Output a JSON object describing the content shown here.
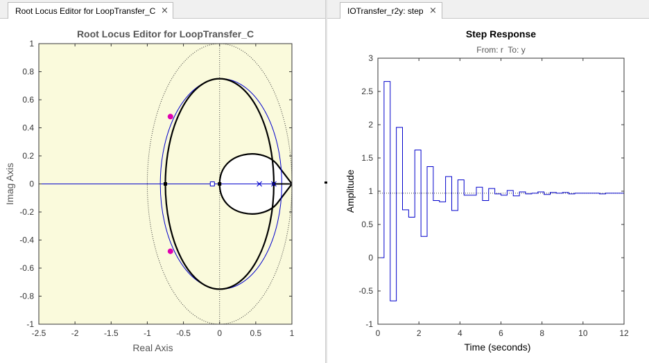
{
  "tabs": {
    "left": {
      "label": "Root Locus Editor for LoopTransfer_C",
      "close_glyph": "×"
    },
    "right": {
      "label": "IOTransfer_r2y: step",
      "close_glyph": "×"
    }
  },
  "chart_data": [
    {
      "type": "root-locus",
      "title": "Root Locus Editor for LoopTransfer_C",
      "xlabel": "Real Axis",
      "ylabel": "Imag Axis",
      "xlim": [
        -2.5,
        1
      ],
      "ylim": [
        -1,
        1
      ],
      "xticks": [
        -2.5,
        -2,
        -1.5,
        -1,
        -0.5,
        0,
        0.5,
        1
      ],
      "yticks": [
        -1,
        -0.8,
        -0.6,
        -0.4,
        -0.2,
        0,
        0.2,
        0.4,
        0.6,
        0.8,
        1
      ],
      "background_color": "#fafadc",
      "unit_circle": {
        "center": [
          0,
          0
        ],
        "radius": 1,
        "style": "dotted"
      },
      "open_loop_poles": [
        [
          0.55,
          0
        ],
        [
          0.75,
          0
        ]
      ],
      "open_loop_zeros": [
        [
          -0.1,
          0
        ]
      ],
      "closed_loop_poles": [
        [
          -0.68,
          0.48
        ],
        [
          -0.68,
          -0.48
        ]
      ],
      "branch_ellipse": {
        "center": [
          0,
          0
        ],
        "radius_x": 0.75,
        "radius_y": 0.75
      },
      "real_axis_branch": [
        [
          -2.5,
          0
        ],
        [
          0.75,
          0
        ]
      ],
      "loop_branch": {
        "left": 0,
        "right": 1,
        "top": 0.22,
        "bottom": -0.22
      },
      "compensator_locus": {
        "center": [
          0.02,
          0
        ],
        "radius_x": 0.84,
        "radius_y": 0.75
      },
      "colors": {
        "locus": "#000000",
        "compensator": "#0000cc",
        "closed_loop_pole": "#e000b0"
      }
    },
    {
      "type": "line",
      "title": "Step Response",
      "subtitle": "From: r  To: y",
      "xlabel": "Time (seconds)",
      "ylabel": "Amplitude",
      "xlim": [
        0,
        12
      ],
      "ylim": [
        -1,
        3
      ],
      "xticks": [
        0,
        2,
        4,
        6,
        8,
        10,
        12
      ],
      "yticks": [
        -1,
        -0.5,
        0,
        0.5,
        1,
        1.5,
        2,
        2.5,
        3
      ],
      "steady_state": 0.97,
      "series": [
        {
          "style": "stairs",
          "color": "#0000cc",
          "sample_time": 0.3,
          "values": [
            0,
            2.65,
            -0.65,
            1.96,
            0.72,
            0.61,
            1.62,
            0.32,
            1.37,
            0.86,
            0.84,
            1.22,
            0.71,
            1.17,
            0.94,
            0.94,
            1.06,
            0.86,
            1.04,
            0.96,
            0.94,
            1.01,
            0.93,
            0.99,
            0.96,
            0.97,
            0.99,
            0.95,
            0.98,
            0.97,
            0.98,
            0.96,
            0.97,
            0.97,
            0.97,
            0.97,
            0.96,
            0.97,
            0.97,
            0.97
          ]
        }
      ]
    }
  ]
}
